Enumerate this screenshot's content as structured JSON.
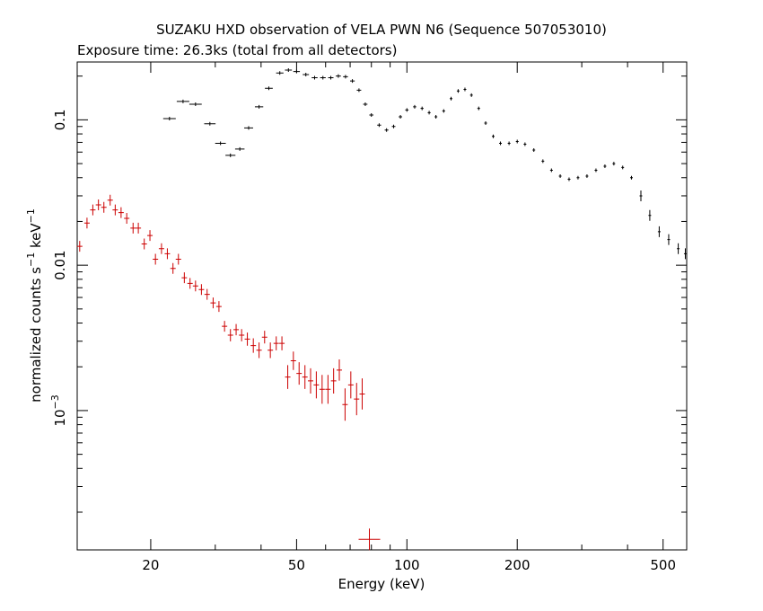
{
  "chart_data": {
    "type": "scatter",
    "title": "SUZAKU HXD observation of VELA PWN N6 (Sequence 507053010)",
    "subtitle": "Exposure time: 26.3ks (total from all detectors)",
    "xlabel": "Energy (keV)",
    "ylabel_main": "normalized counts s",
    "ylabel_unit_a": "−1",
    "ylabel_mid": " keV",
    "ylabel_unit_b": "−1",
    "x_scale": "log",
    "y_scale": "log",
    "xlim": [
      12.6,
      580
    ],
    "ylim": [
      0.00011,
      0.25
    ],
    "x_ticks": [
      {
        "value": 20,
        "label": "20"
      },
      {
        "value": 50,
        "label": "50"
      },
      {
        "value": 100,
        "label": "100"
      },
      {
        "value": 200,
        "label": "200"
      },
      {
        "value": 500,
        "label": "500"
      }
    ],
    "y_ticks": [
      {
        "value": 0.1,
        "label": "0.1"
      },
      {
        "value": 0.01,
        "label": "0.01"
      },
      {
        "value": 0.001,
        "label": "10",
        "sup": "−3"
      }
    ],
    "series": [
      {
        "color": "#000000",
        "points": [
          [
            22.5,
            0.102
          ],
          [
            24.5,
            0.134
          ],
          [
            26.5,
            0.128
          ],
          [
            29,
            0.094
          ],
          [
            31,
            0.069
          ],
          [
            33,
            0.057
          ],
          [
            35,
            0.063
          ],
          [
            37,
            0.088
          ],
          [
            39.5,
            0.123
          ],
          [
            42,
            0.165
          ],
          [
            45,
            0.21
          ],
          [
            47.5,
            0.22
          ],
          [
            50,
            0.215
          ],
          [
            53,
            0.205
          ],
          [
            56,
            0.195
          ],
          [
            59,
            0.195
          ],
          [
            62,
            0.195
          ],
          [
            65,
            0.2
          ],
          [
            68,
            0.198
          ],
          [
            71,
            0.185
          ],
          [
            74,
            0.16
          ],
          [
            77,
            0.128
          ],
          [
            80,
            0.108
          ],
          [
            84,
            0.092
          ],
          [
            88,
            0.085
          ],
          [
            92,
            0.09
          ],
          [
            96,
            0.105
          ],
          [
            100,
            0.117
          ],
          [
            105,
            0.123
          ],
          [
            110,
            0.12
          ],
          [
            115,
            0.112
          ],
          [
            120,
            0.105
          ],
          [
            126,
            0.115
          ],
          [
            132,
            0.14
          ],
          [
            138,
            0.158
          ],
          [
            144,
            0.162
          ],
          [
            150,
            0.148
          ],
          [
            157,
            0.12
          ],
          [
            164,
            0.095
          ],
          [
            172,
            0.077
          ],
          [
            180,
            0.069
          ],
          [
            190,
            0.069
          ],
          [
            200,
            0.071
          ],
          [
            210,
            0.068
          ],
          [
            222,
            0.062
          ],
          [
            235,
            0.052
          ],
          [
            248,
            0.045
          ],
          [
            262,
            0.041
          ],
          [
            277,
            0.039
          ],
          [
            293,
            0.04
          ],
          [
            310,
            0.041
          ],
          [
            328,
            0.045
          ],
          [
            347,
            0.048
          ],
          [
            367,
            0.05
          ],
          [
            388,
            0.047
          ],
          [
            410,
            0.04
          ],
          [
            435,
            0.03
          ],
          [
            460,
            0.022
          ],
          [
            488,
            0.017
          ],
          [
            518,
            0.015
          ],
          [
            550,
            0.013
          ],
          [
            575,
            0.012
          ]
        ]
      },
      {
        "color": "#cc0000",
        "points": [
          [
            12.8,
            0.0135
          ],
          [
            13.4,
            0.0195
          ],
          [
            13.9,
            0.024
          ],
          [
            14.4,
            0.026
          ],
          [
            14.9,
            0.025
          ],
          [
            15.5,
            0.028
          ],
          [
            16,
            0.024
          ],
          [
            16.6,
            0.023
          ],
          [
            17.2,
            0.021
          ],
          [
            17.9,
            0.018
          ],
          [
            18.5,
            0.018
          ],
          [
            19.2,
            0.014
          ],
          [
            19.9,
            0.016
          ],
          [
            20.6,
            0.011
          ],
          [
            21.4,
            0.013
          ],
          [
            22.2,
            0.012
          ],
          [
            23,
            0.0095
          ],
          [
            23.8,
            0.011
          ],
          [
            24.7,
            0.0082
          ],
          [
            25.6,
            0.0075
          ],
          [
            26.5,
            0.0072
          ],
          [
            27.5,
            0.0068
          ],
          [
            28.5,
            0.0063
          ],
          [
            29.6,
            0.0055
          ],
          [
            30.7,
            0.0052
          ],
          [
            31.8,
            0.0038
          ],
          [
            33,
            0.0033
          ],
          [
            34.2,
            0.0036
          ],
          [
            35.4,
            0.0033
          ],
          [
            36.7,
            0.0031
          ],
          [
            38.1,
            0.0028
          ],
          [
            39.5,
            0.0026
          ],
          [
            40.9,
            0.0032
          ],
          [
            42.4,
            0.0026
          ],
          [
            44,
            0.0029
          ],
          [
            45.6,
            0.0029
          ],
          [
            47.3,
            0.0017
          ],
          [
            49,
            0.0022
          ],
          [
            50.8,
            0.0018
          ],
          [
            52.7,
            0.0017
          ],
          [
            54.6,
            0.0016
          ],
          [
            56.6,
            0.0015
          ],
          [
            58.7,
            0.0014
          ],
          [
            60.9,
            0.0014
          ],
          [
            63.1,
            0.0016
          ],
          [
            65.4,
            0.0019
          ],
          [
            67.8,
            0.0011
          ],
          [
            70.3,
            0.0015
          ],
          [
            72.9,
            0.0012
          ],
          [
            75.5,
            0.0013
          ],
          [
            79,
            0.00013
          ]
        ]
      }
    ]
  }
}
